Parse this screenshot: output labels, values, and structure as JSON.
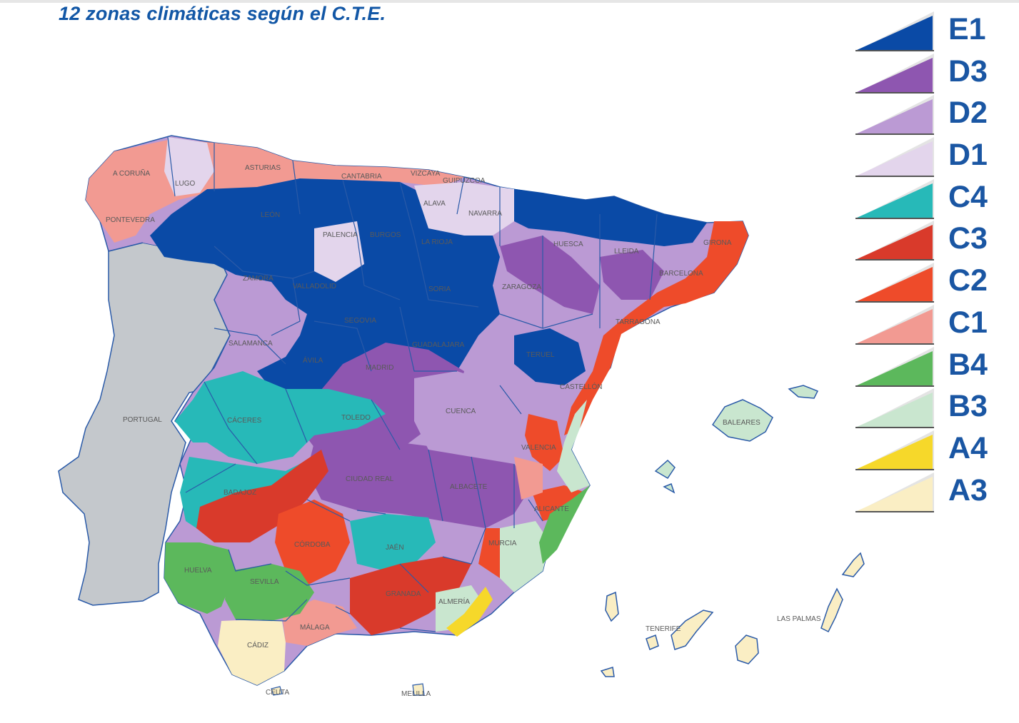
{
  "title": "12 zonas climáticas según el C.T.E.",
  "legend": [
    {
      "zone": "E1",
      "color": "#0a4aa6"
    },
    {
      "zone": "D3",
      "color": "#8e56b0"
    },
    {
      "zone": "D2",
      "color": "#bb9ad4"
    },
    {
      "zone": "D1",
      "color": "#e3d5ec"
    },
    {
      "zone": "C4",
      "color": "#27b9b8"
    },
    {
      "zone": "C3",
      "color": "#d93a2b"
    },
    {
      "zone": "C2",
      "color": "#ee4b2a"
    },
    {
      "zone": "C1",
      "color": "#f29a92"
    },
    {
      "zone": "B4",
      "color": "#5cb85c"
    },
    {
      "zone": "B3",
      "color": "#c9e6cf"
    },
    {
      "zone": "A4",
      "color": "#f6d82a"
    },
    {
      "zone": "A3",
      "color": "#faeec4"
    }
  ],
  "colors": {
    "portugal": "#c4c8cc",
    "border": "#2a5aa8"
  },
  "places": {
    "a_coruna": "A CORUÑA",
    "lugo": "LUGO",
    "asturias": "ASTURIAS",
    "cantabria": "CANTABRIA",
    "vizcaya": "VIZCAYA",
    "guipuzcoa": "GUIPÚZCOA",
    "alava": "ALAVA",
    "navarra": "NAVARRA",
    "pontevedra": "PONTEVEDRA",
    "leon": "LEÓN",
    "palencia": "PALENCIA",
    "burgos": "BURGOS",
    "la_rioja": "LA RIOJA",
    "huesca": "HUESCA",
    "lleida": "LLEIDA",
    "girona": "GIRONA",
    "barcelona": "BARCELONA",
    "zamora": "ZAMORA",
    "valladolid": "VALLADOLID",
    "soria": "SORIA",
    "zaragoza": "ZARAGOZA",
    "tarragona": "TARRAGONA",
    "segovia": "SEGOVIA",
    "salamanca": "SALAMANCA",
    "guadalajara": "GUADALAJARA",
    "teruel": "TERUEL",
    "avila": "ÁVILA",
    "madrid": "MADRID",
    "castellon": "CASTELLÓN",
    "portugal": "PORTUGAL",
    "caceres": "CÁCERES",
    "toledo": "TOLEDO",
    "cuenca": "CUENCA",
    "baleares": "BALEARES",
    "valencia": "VALENCIA",
    "badajoz": "BADAJOZ",
    "ciudad_real": "CIUDAD REAL",
    "albacete": "ALBACETE",
    "alicante": "ALICANTE",
    "cordoba": "CÓRDOBA",
    "jaen": "JAÉN",
    "murcia": "MURCIA",
    "huelva": "HUELVA",
    "sevilla": "SEVILLA",
    "granada": "GRANADA",
    "almeria": "ALMERÍA",
    "malaga": "MÁLAGA",
    "cadiz": "CÁDIZ",
    "ceuta": "CEUTA",
    "melilla": "MELILLA",
    "tenerife": "TENERIFE",
    "las_palmas": "LAS PALMAS"
  }
}
